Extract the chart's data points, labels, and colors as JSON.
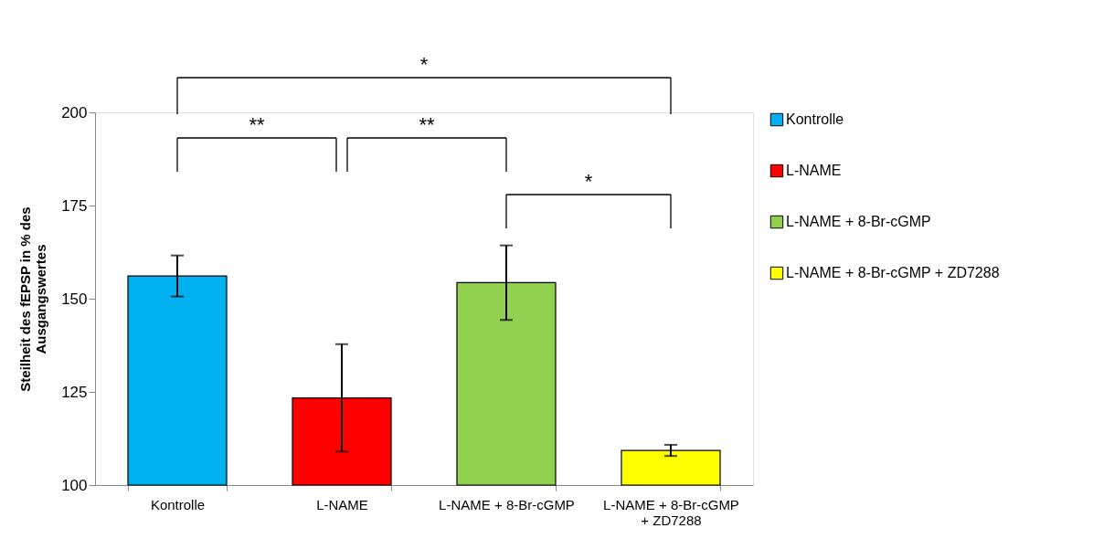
{
  "chart_data": {
    "type": "bar",
    "ylabel": "Steilheit des fEPSP in % des Ausgangswertes",
    "categories": [
      "Kontrolle",
      "L-NAME",
      "L-NAME + 8-Br-cGMP",
      "L-NAME + 8-Br-cGMP + ZD7288"
    ],
    "series": [
      {
        "name": "Kontrolle",
        "color": "#00b0f0",
        "values": [
          156.1,
          null,
          null,
          null
        ],
        "errors": [
          5.5,
          null,
          null,
          null
        ]
      },
      {
        "name": "L-NAME",
        "color": "#ff0000",
        "values": [
          null,
          123.4,
          null,
          null
        ],
        "errors": [
          null,
          14.4,
          null,
          null
        ]
      },
      {
        "name": "L-NAME + 8-Br-cGMP",
        "color": "#92d050",
        "values": [
          null,
          null,
          154.3,
          null
        ],
        "errors": [
          null,
          null,
          10,
          null
        ]
      },
      {
        "name": "L-NAME + 8-Br-cGMP + ZD7288",
        "color": "#ffff00",
        "values": [
          null,
          null,
          null,
          109.3
        ],
        "errors": [
          null,
          null,
          null,
          1.5
        ]
      }
    ],
    "ylim": [
      100,
      200
    ],
    "yticks": [
      100,
      125,
      150,
      175,
      200
    ],
    "grid": false,
    "legend": "right",
    "annotations": [
      "*",
      "**",
      "**",
      "*"
    ]
  }
}
